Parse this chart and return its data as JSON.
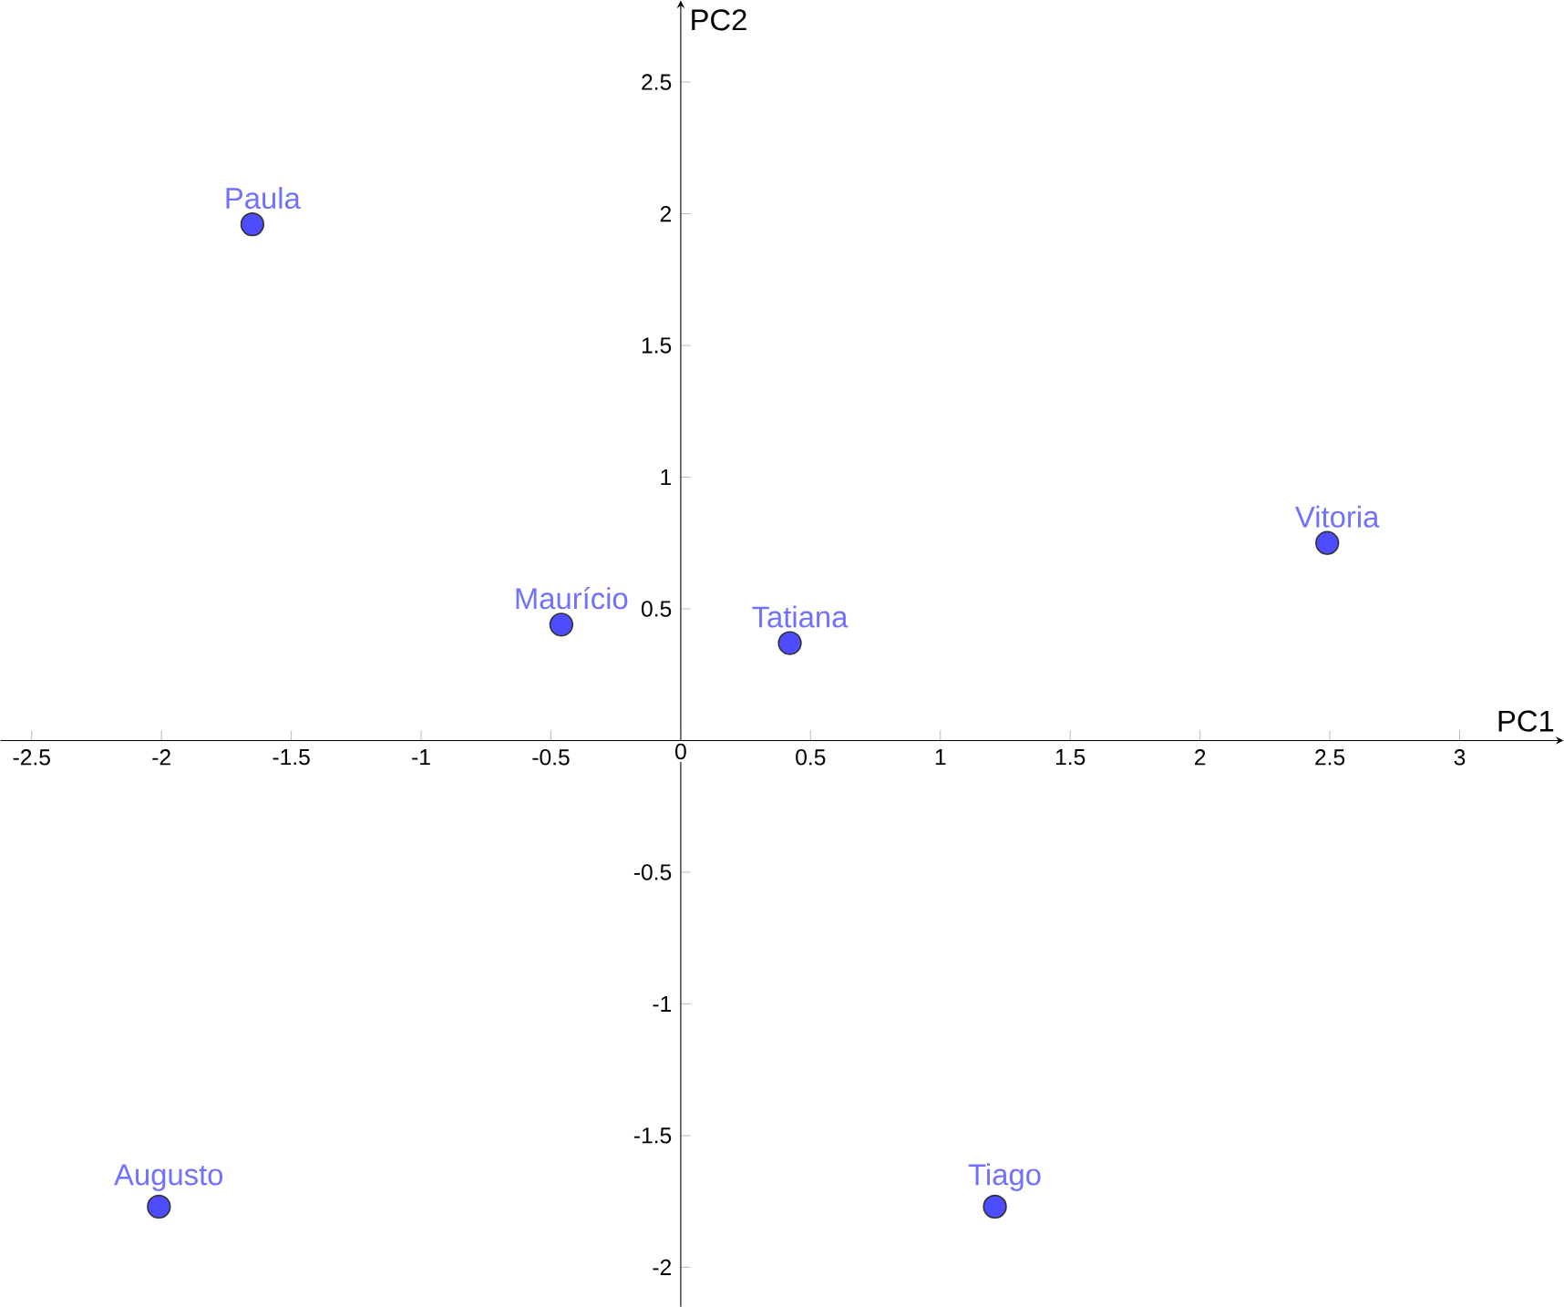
{
  "chart_data": {
    "type": "scatter",
    "xlabel": "PC1",
    "ylabel": "PC2",
    "x": [
      -1.65,
      -0.46,
      0.42,
      2.49,
      -2.01,
      1.21
    ],
    "series": [
      {
        "color": "#4d4dff",
        "values": [
          1.96,
          0.44,
          0.37,
          0.75,
          -1.77,
          -1.77
        ]
      }
    ],
    "annotations": [
      {
        "text": "Paula",
        "x": -1.65,
        "y": 1.96
      },
      {
        "text": "Maurício",
        "x": -0.46,
        "y": 0.44
      },
      {
        "text": "Tatiana",
        "x": 0.42,
        "y": 0.37
      },
      {
        "text": "Vitoria",
        "x": 2.49,
        "y": 0.75
      },
      {
        "text": "Augusto",
        "x": -2.01,
        "y": -1.77
      },
      {
        "text": "Tiago",
        "x": 1.21,
        "y": -1.77
      }
    ],
    "xlim": [
      -2.62,
      3.4
    ],
    "ylim": [
      -2.15,
      2.81
    ],
    "xticks": [
      -2.5,
      -2,
      -1.5,
      -1,
      -0.5,
      0,
      0.5,
      1,
      1.5,
      2,
      2.5,
      3
    ],
    "yticks": [
      -2,
      -1.5,
      -1,
      -0.5,
      0.5,
      1,
      1.5,
      2,
      2.5
    ],
    "marker": "circle",
    "grid": false
  }
}
